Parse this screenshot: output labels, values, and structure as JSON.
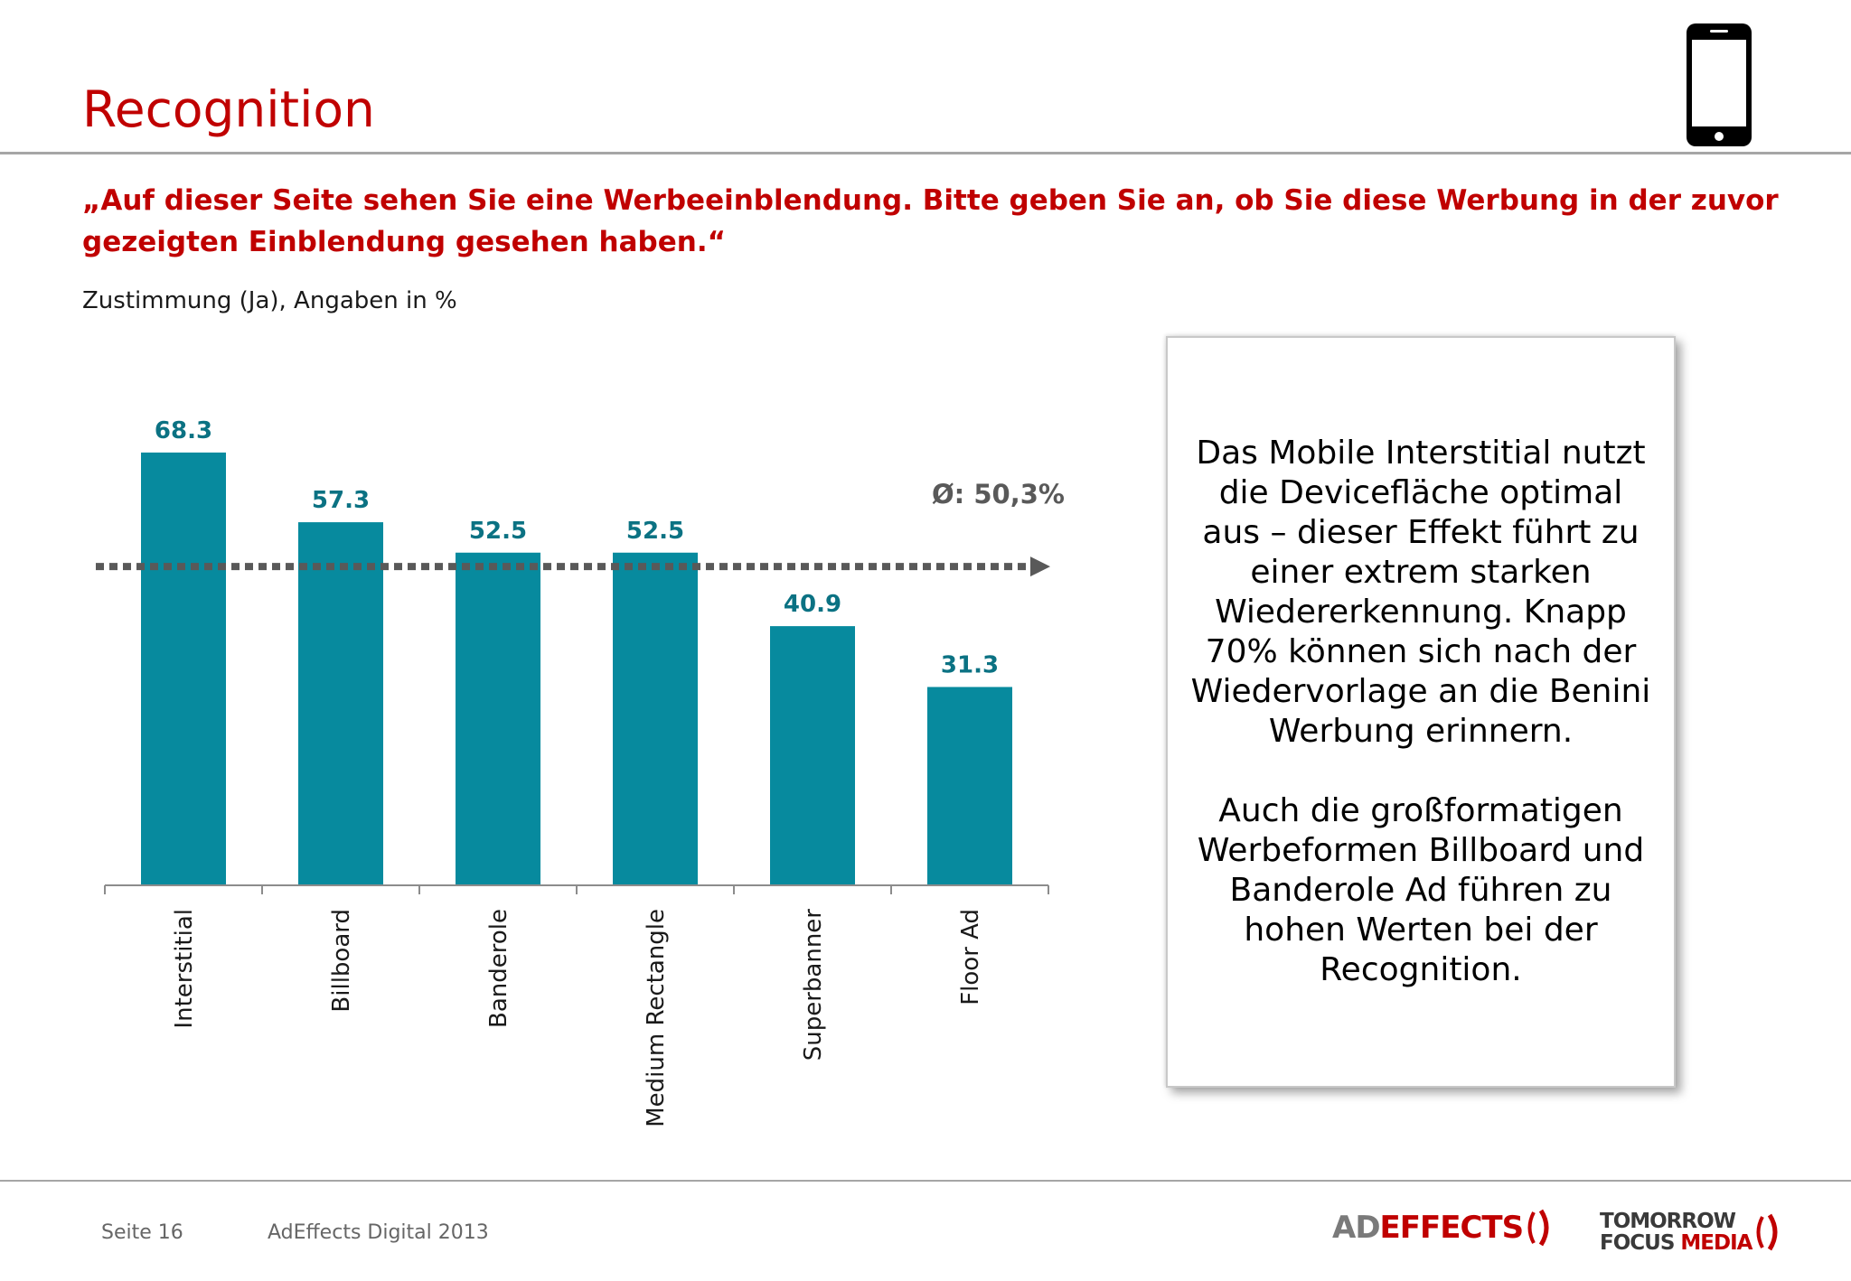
{
  "slide": {
    "title": "Recognition",
    "question": "„Auf dieser Seite sehen Sie eine Werbeeinblendung. Bitte geben Sie an, ob Sie diese Werbung in der zuvor gezeigten Einblendung gesehen haben.“",
    "subtitle": "Zustimmung (Ja), Angaben in %",
    "phone_icon": "smartphone-icon"
  },
  "chart_data": {
    "type": "bar",
    "categories": [
      "Interstitial",
      "Billboard",
      "Banderole",
      "Medium Rectangle",
      "Superbanner",
      "Floor Ad"
    ],
    "values": [
      68.3,
      57.3,
      52.5,
      52.5,
      40.9,
      31.3
    ],
    "value_labels": [
      "68.3",
      "57.3",
      "52.5",
      "52.5",
      "40.9",
      "31.3"
    ],
    "ylim": [
      0,
      70
    ],
    "average": 50.3,
    "average_label": "Ø: 50,3%",
    "grid": false,
    "colors": {
      "bar": "#078a9e",
      "value_label": "#0b7283",
      "average_line": "#595959"
    }
  },
  "callout": {
    "paragraph_1": "Das Mobile Interstitial nutzt die Devicefläche optimal aus – dieser Effekt führt zu einer extrem starken Wiedererkennung. Knapp 70% können sich nach der Wiedervorlage an die Benini Werbung erinnern.",
    "paragraph_2": "Auch die großformatigen Werbeformen Billboard und Banderole Ad führen zu hohen Werten bei der Recognition."
  },
  "footer": {
    "page": "Seite 16",
    "name": "AdEffects Digital 2013",
    "logo_adeffects": {
      "part1": "AD",
      "part2": "EFFECTS"
    },
    "logo_tfm": {
      "line1": "TOMORROW",
      "line2a": "FOCUS",
      "line2b": "MEDIA"
    }
  },
  "colors": {
    "brand_red": "#c00000",
    "rule": "#a6a6a6"
  }
}
